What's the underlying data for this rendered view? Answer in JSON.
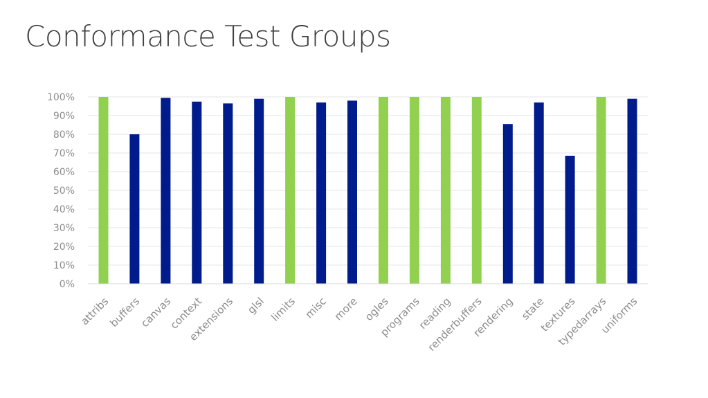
{
  "slide": {
    "title": "Conformance Test Groups"
  },
  "colors": {
    "full_pass": "#92d050",
    "partial_pass": "#001b8c"
  },
  "chart_data": {
    "type": "bar",
    "title": "",
    "xlabel": "",
    "ylabel": "",
    "ylim": [
      0,
      100
    ],
    "yticks": [
      0,
      10,
      20,
      30,
      40,
      50,
      60,
      70,
      80,
      90,
      100
    ],
    "ytick_labels": [
      "0%",
      "10%",
      "20%",
      "30%",
      "40%",
      "50%",
      "60%",
      "70%",
      "80%",
      "90%",
      "100%"
    ],
    "grid": true,
    "legend": "none",
    "categories": [
      "attribs",
      "buffers",
      "canvas",
      "context",
      "extensions",
      "glsl",
      "limits",
      "misc",
      "more",
      "ogles",
      "programs",
      "reading",
      "renderbuffers",
      "rendering",
      "state",
      "textures",
      "typedarrays",
      "uniforms"
    ],
    "values": [
      100,
      80,
      99.5,
      97.5,
      96.5,
      99,
      100,
      97,
      98,
      100,
      100,
      100,
      100,
      85.5,
      97,
      68.5,
      100,
      99
    ]
  }
}
